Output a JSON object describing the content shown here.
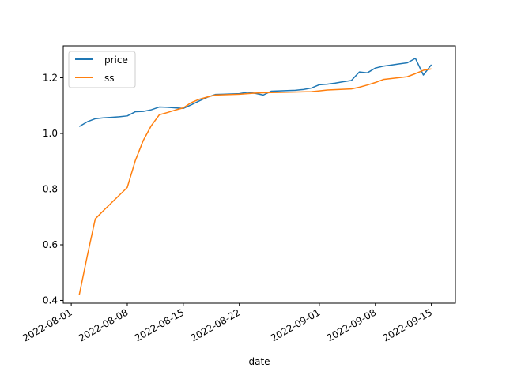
{
  "chart_data": {
    "type": "line",
    "title": "",
    "xlabel": "date",
    "ylabel": "",
    "xlim": [
      "2022-07-31",
      "2022-09-18"
    ],
    "ylim": [
      0.39,
      1.315
    ],
    "legend": "top-left",
    "grid": false,
    "colors": {
      "price": "#1f77b4",
      "ss": "#ff7f0e"
    },
    "x_ticks": [
      "2022-08-01",
      "2022-08-08",
      "2022-08-15",
      "2022-08-22",
      "2022-09-01",
      "2022-09-08",
      "2022-09-15"
    ],
    "y_ticks": [
      "0.4",
      "0.6",
      "0.8",
      "1.0",
      "1.2"
    ],
    "series": [
      {
        "name": "price",
        "points": [
          [
            "2022-08-02",
            1.025
          ],
          [
            "2022-08-03",
            1.042
          ],
          [
            "2022-08-04",
            1.053
          ],
          [
            "2022-08-05",
            1.056
          ],
          [
            "2022-08-06",
            1.058
          ],
          [
            "2022-08-07",
            1.06
          ],
          [
            "2022-08-08",
            1.063
          ],
          [
            "2022-08-09",
            1.078
          ],
          [
            "2022-08-10",
            1.079
          ],
          [
            "2022-08-11",
            1.085
          ],
          [
            "2022-08-12",
            1.095
          ],
          [
            "2022-08-13",
            1.094
          ],
          [
            "2022-08-14",
            1.092
          ],
          [
            "2022-08-15",
            1.09
          ],
          [
            "2022-08-16",
            1.103
          ],
          [
            "2022-08-17",
            1.117
          ],
          [
            "2022-08-18",
            1.13
          ],
          [
            "2022-08-19",
            1.14
          ],
          [
            "2022-08-20",
            1.141
          ],
          [
            "2022-08-21",
            1.142
          ],
          [
            "2022-08-22",
            1.143
          ],
          [
            "2022-08-23",
            1.148
          ],
          [
            "2022-08-24",
            1.144
          ],
          [
            "2022-08-25",
            1.138
          ],
          [
            "2022-08-26",
            1.152
          ],
          [
            "2022-08-27",
            1.153
          ],
          [
            "2022-08-28",
            1.154
          ],
          [
            "2022-08-29",
            1.155
          ],
          [
            "2022-08-30",
            1.158
          ],
          [
            "2022-08-31",
            1.163
          ],
          [
            "2022-09-01",
            1.175
          ],
          [
            "2022-09-02",
            1.177
          ],
          [
            "2022-09-03",
            1.181
          ],
          [
            "2022-09-04",
            1.186
          ],
          [
            "2022-09-05",
            1.19
          ],
          [
            "2022-09-06",
            1.221
          ],
          [
            "2022-09-07",
            1.218
          ],
          [
            "2022-09-08",
            1.235
          ],
          [
            "2022-09-09",
            1.242
          ],
          [
            "2022-09-10",
            1.246
          ],
          [
            "2022-09-11",
            1.25
          ],
          [
            "2022-09-12",
            1.254
          ],
          [
            "2022-09-13",
            1.27
          ],
          [
            "2022-09-14",
            1.21
          ],
          [
            "2022-09-15",
            1.247
          ]
        ]
      },
      {
        "name": "ss",
        "points": [
          [
            "2022-08-02",
            0.42
          ],
          [
            "2022-08-03",
            0.56
          ],
          [
            "2022-08-04",
            0.693
          ],
          [
            "2022-08-05",
            0.722
          ],
          [
            "2022-08-06",
            0.75
          ],
          [
            "2022-08-07",
            0.778
          ],
          [
            "2022-08-08",
            0.806
          ],
          [
            "2022-08-09",
            0.902
          ],
          [
            "2022-08-10",
            0.975
          ],
          [
            "2022-08-11",
            1.028
          ],
          [
            "2022-08-12",
            1.067
          ],
          [
            "2022-08-13",
            1.075
          ],
          [
            "2022-08-14",
            1.084
          ],
          [
            "2022-08-15",
            1.092
          ],
          [
            "2022-08-16",
            1.111
          ],
          [
            "2022-08-17",
            1.123
          ],
          [
            "2022-08-18",
            1.131
          ],
          [
            "2022-08-19",
            1.138
          ],
          [
            "2022-08-22",
            1.141
          ],
          [
            "2022-08-23",
            1.143
          ],
          [
            "2022-08-24",
            1.145
          ],
          [
            "2022-08-25",
            1.146
          ],
          [
            "2022-08-26",
            1.147
          ],
          [
            "2022-08-31",
            1.15
          ],
          [
            "2022-09-01",
            1.153
          ],
          [
            "2022-09-02",
            1.156
          ],
          [
            "2022-09-05",
            1.16
          ],
          [
            "2022-09-06",
            1.166
          ],
          [
            "2022-09-07",
            1.174
          ],
          [
            "2022-09-08",
            1.183
          ],
          [
            "2022-09-09",
            1.194
          ],
          [
            "2022-09-12",
            1.204
          ],
          [
            "2022-09-13",
            1.215
          ],
          [
            "2022-09-14",
            1.227
          ],
          [
            "2022-09-15",
            1.232
          ]
        ]
      }
    ]
  }
}
